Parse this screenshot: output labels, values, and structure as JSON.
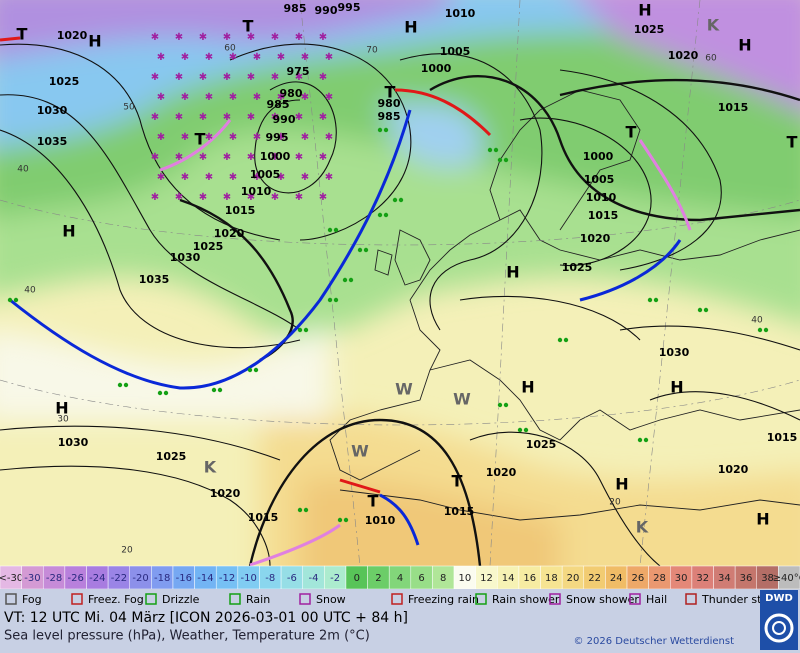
{
  "map": {
    "pressure_labels": [
      "1020",
      "1025",
      "1030",
      "1035",
      "985",
      "990",
      "995",
      "1010",
      "1005",
      "1000",
      "975",
      "980",
      "985",
      "990",
      "995",
      "1000",
      "1005",
      "1010",
      "1015",
      "1020",
      "1025",
      "1030",
      "1035",
      "980",
      "985",
      "1025",
      "1020",
      "1015",
      "1000",
      "1005",
      "1010",
      "1015",
      "1020",
      "1025",
      "1030",
      "1030",
      "1025",
      "1020",
      "1015",
      "1010",
      "1015",
      "1020",
      "1025",
      "1020",
      "1015"
    ],
    "temperature_labels": [
      "60",
      "50",
      "40",
      "40",
      "30",
      "20",
      "60",
      "40",
      "20",
      "70"
    ],
    "centers": [
      "T",
      "H",
      "T",
      "H",
      "H",
      "H",
      "K",
      "T",
      "T",
      "T",
      "T",
      "H",
      "H",
      "H",
      "H",
      "H",
      "H",
      "H",
      "T",
      "T",
      "W",
      "W",
      "W",
      "K",
      "K"
    ]
  },
  "scale": {
    "labels": [
      "<-30",
      "-30",
      "-28",
      "-26",
      "-24",
      "-22",
      "-20",
      "-18",
      "-16",
      "-14",
      "-12",
      "-10",
      "-8",
      "-6",
      "-4",
      "-2",
      "0",
      "2",
      "4",
      "6",
      "8",
      "10",
      "12",
      "14",
      "16",
      "18",
      "20",
      "22",
      "24",
      "26",
      "28",
      "30",
      "32",
      "34",
      "36",
      "38",
      "≥40°C"
    ],
    "colors": [
      "#e4b8e4",
      "#d49ad4",
      "#c68bd8",
      "#b880dc",
      "#a87ce0",
      "#9a84e6",
      "#8c90ea",
      "#809cf0",
      "#76a8f2",
      "#72b4f4",
      "#76c0f4",
      "#80ccf2",
      "#8ad6ee",
      "#96dee6",
      "#a2e6da",
      "#acebce",
      "#58c458",
      "#6ccd68",
      "#82d67a",
      "#98de88",
      "#b0e698",
      "#fbfcf0",
      "#f8f8cc",
      "#f6f2b4",
      "#f6eca2",
      "#f6e492",
      "#f4d882",
      "#f2cc72",
      "#f0bc66",
      "#eea868",
      "#ea9870",
      "#e48878",
      "#dc8078",
      "#d07c74",
      "#c4766c",
      "#b46e66",
      "#bcbcbc"
    ]
  },
  "weather_legend": [
    "Fog",
    "Freez. Fog",
    "Drizzle",
    "Rain",
    "Snow",
    "Freezing rain",
    "Rain shower",
    "Snow shower",
    "Hail",
    "Thunder storm"
  ],
  "footer": {
    "valid_time": "VT: 12 UTC Mi.  04 März [ICON 2026-03-01  00 UTC + 84 h]",
    "description": "Sea level pressure (hPa), Weather, Temperature 2m (°C)",
    "copyright": "© 2026 Deutscher Wetterdienst",
    "logo": "DWD"
  }
}
